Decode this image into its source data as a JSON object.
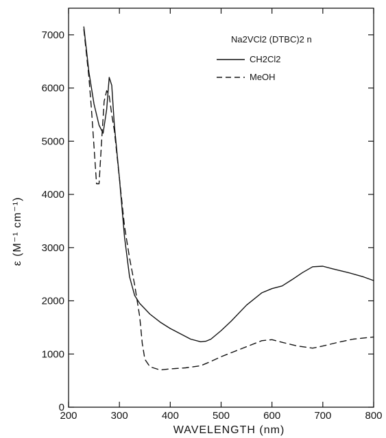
{
  "chart_data": {
    "type": "line",
    "xlabel": "WAVELENGTH (nm)",
    "ylabel": "ε (M⁻¹ cm⁻¹)",
    "xlim": [
      200,
      800
    ],
    "ylim": [
      0,
      7500
    ],
    "x_ticks": [
      "200",
      "300",
      "400",
      "500",
      "600",
      "700",
      "800"
    ],
    "y_ticks": [
      "0",
      "1000",
      "2000",
      "3000",
      "4000",
      "5000",
      "6000",
      "7000"
    ],
    "grid": false,
    "legend_title": "Na2VCl2 (DTBC)2 n",
    "legend_position": "top-right",
    "series": [
      {
        "name": "CH2Cl2",
        "style": "solid",
        "color": "#111111",
        "x": [
          230,
          240,
          250,
          260,
          268,
          275,
          280,
          285,
          290,
          300,
          310,
          320,
          330,
          340,
          360,
          380,
          400,
          420,
          440,
          460,
          470,
          480,
          500,
          520,
          550,
          580,
          600,
          620,
          640,
          660,
          680,
          700,
          720,
          750,
          780,
          800
        ],
        "y": [
          7150,
          6300,
          5700,
          5300,
          5150,
          5600,
          6200,
          6050,
          5300,
          4300,
          3200,
          2450,
          2100,
          1950,
          1750,
          1600,
          1480,
          1380,
          1280,
          1230,
          1240,
          1280,
          1440,
          1620,
          1920,
          2150,
          2230,
          2280,
          2400,
          2530,
          2640,
          2650,
          2600,
          2530,
          2450,
          2380
        ]
      },
      {
        "name": "MeOH",
        "style": "dashed",
        "color": "#111111",
        "x": [
          230,
          240,
          245,
          250,
          255,
          260,
          265,
          270,
          275,
          280,
          285,
          290,
          300,
          310,
          320,
          330,
          340,
          345,
          350,
          360,
          380,
          400,
          430,
          460,
          480,
          500,
          540,
          580,
          600,
          620,
          650,
          680,
          700,
          730,
          760,
          800
        ],
        "y": [
          7100,
          6200,
          5600,
          4900,
          4200,
          4200,
          5000,
          5750,
          5950,
          5850,
          5500,
          5200,
          4300,
          3400,
          2800,
          2300,
          1700,
          1200,
          900,
          760,
          700,
          720,
          740,
          780,
          860,
          950,
          1100,
          1250,
          1270,
          1220,
          1150,
          1110,
          1150,
          1220,
          1280,
          1320
        ]
      }
    ]
  }
}
